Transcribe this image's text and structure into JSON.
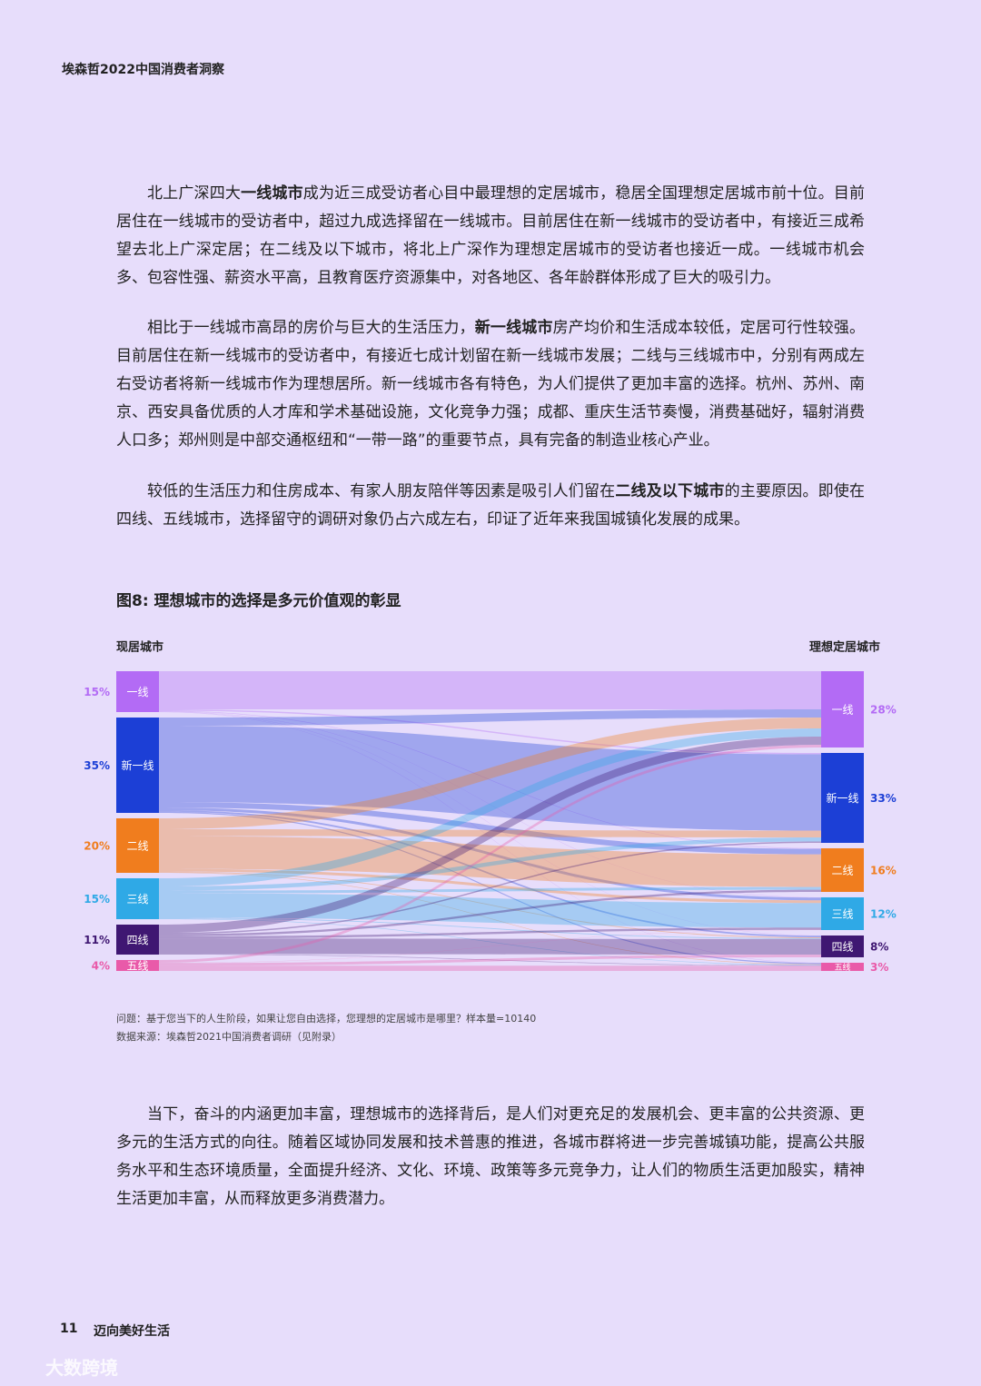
{
  "header": {
    "title": "埃森哲2022中国消费者洞察"
  },
  "paragraphs": [
    {
      "before": "北上广深四大",
      "bold": "一线城市",
      "after": "成为近三成受访者心目中最理想的定居城市，稳居全国理想定居城市前十位。目前居住在一线城市的受访者中，超过九成选择留在一线城市。目前居住在新一线城市的受访者中，有接近三成希望去北上广深定居；在二线及以下城市，将北上广深作为理想定居城市的受访者也接近一成。一线城市机会多、包容性强、薪资水平高，且教育医疗资源集中，对各地区、各年龄群体形成了巨大的吸引力。"
    },
    {
      "before": "相比于一线城市高昂的房价与巨大的生活压力，",
      "bold": "新一线城市",
      "after": "房产均价和生活成本较低，定居可行性较强。目前居住在新一线城市的受访者中，有接近七成计划留在新一线城市发展；二线与三线城市中，分别有两成左右受访者将新一线城市作为理想居所。新一线城市各有特色，为人们提供了更加丰富的选择。杭州、苏州、南京、西安具备优质的人才库和学术基础设施，文化竞争力强；成都、重庆生活节奏慢，消费基础好，辐射消费人口多；郑州则是中部交通枢纽和“一带一路”的重要节点，具有完备的制造业核心产业。"
    },
    {
      "before": "较低的生活压力和住房成本、有家人朋友陪伴等因素是吸引人们留在",
      "bold": "二线及以下城市",
      "after": "的主要原因。即使在四线、五线城市，选择留守的调研对象仍占六成左右，印证了近年来我国城镇化发展的成果。"
    }
  ],
  "chart_data": {
    "type": "sankey",
    "title": "图8: 理想城市的选择是多元价值观的彰显",
    "left_title": "现居城市",
    "right_title": "理想定居城市",
    "sources": {
      "categories": [
        "一线",
        "新一线",
        "二线",
        "三线",
        "四线",
        "五线"
      ],
      "values": [
        15,
        35,
        20,
        15,
        11,
        4
      ],
      "value_labels": [
        "15%",
        "35%",
        "20%",
        "15%",
        "11%",
        "4%"
      ]
    },
    "targets": {
      "categories": [
        "一线",
        "新一线",
        "二线",
        "三线",
        "四线",
        "五线"
      ],
      "values": [
        28,
        33,
        16,
        12,
        8,
        3
      ],
      "value_labels": [
        "28%",
        "33%",
        "16%",
        "12%",
        "8%",
        "3%"
      ]
    },
    "colors": [
      "#b36bf5",
      "#1c3fd6",
      "#f07d1e",
      "#2fa9e6",
      "#3f1772",
      "#e95aa9"
    ],
    "flows": [
      [
        14,
        0.5,
        0.2,
        0.1,
        0.1,
        0.1
      ],
      [
        3,
        28,
        2,
        1,
        0.6,
        0.4
      ],
      [
        4,
        2.5,
        12,
        1,
        0.3,
        0.2
      ],
      [
        3,
        1.5,
        1,
        9,
        0.3,
        0.2
      ],
      [
        3,
        0.5,
        0.8,
        0.8,
        5.7,
        0.2
      ],
      [
        1,
        0,
        0,
        0.1,
        1,
        1.9
      ]
    ],
    "note": "问题：基于您当下的人生阶段，如果让您自由选择，您理想的定居城市是哪里？样本量=10140",
    "source": "数据来源：埃森哲2021中国消费者调研（见附录）"
  },
  "closing": "当下，奋斗的内涵更加丰富，理想城市的选择背后，是人们对更充足的发展机会、更丰富的公共资源、更多元的生活方式的向往。随着区域协同发展和技术普惠的推进，各城市群将进一步完善城镇功能，提高公共服务水平和生态环境质量，全面提升经济、文化、环境、政策等多元竞争力，让人们的物质生活更加殷实，精神生活更加丰富，从而释放更多消费潜力。",
  "footer": {
    "page": "11",
    "section": "迈向美好生活"
  },
  "watermark": "大数跨境"
}
